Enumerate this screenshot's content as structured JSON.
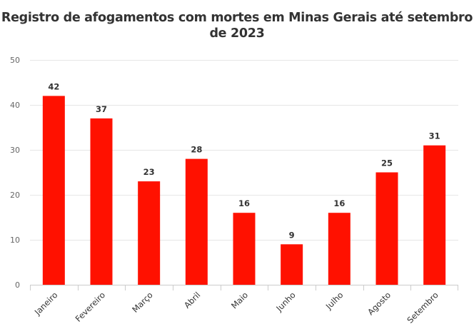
{
  "chart_data": {
    "type": "bar",
    "title": "Registro de afogamentos com mortes em Minas Gerais até setembro de 2023",
    "categories": [
      "Janeiro",
      "Fevereiro",
      "Março",
      "Abril",
      "Maio",
      "Junho",
      "Julho",
      "Agosto",
      "Setembro"
    ],
    "values": [
      42,
      37,
      23,
      28,
      16,
      9,
      16,
      25,
      31
    ],
    "xlabel": "",
    "ylabel": "",
    "ylim": [
      0,
      50
    ],
    "yticks": [
      0,
      10,
      20,
      30,
      40,
      50
    ],
    "grid": true,
    "bar_color": "#ff1100",
    "data_labels": true
  }
}
